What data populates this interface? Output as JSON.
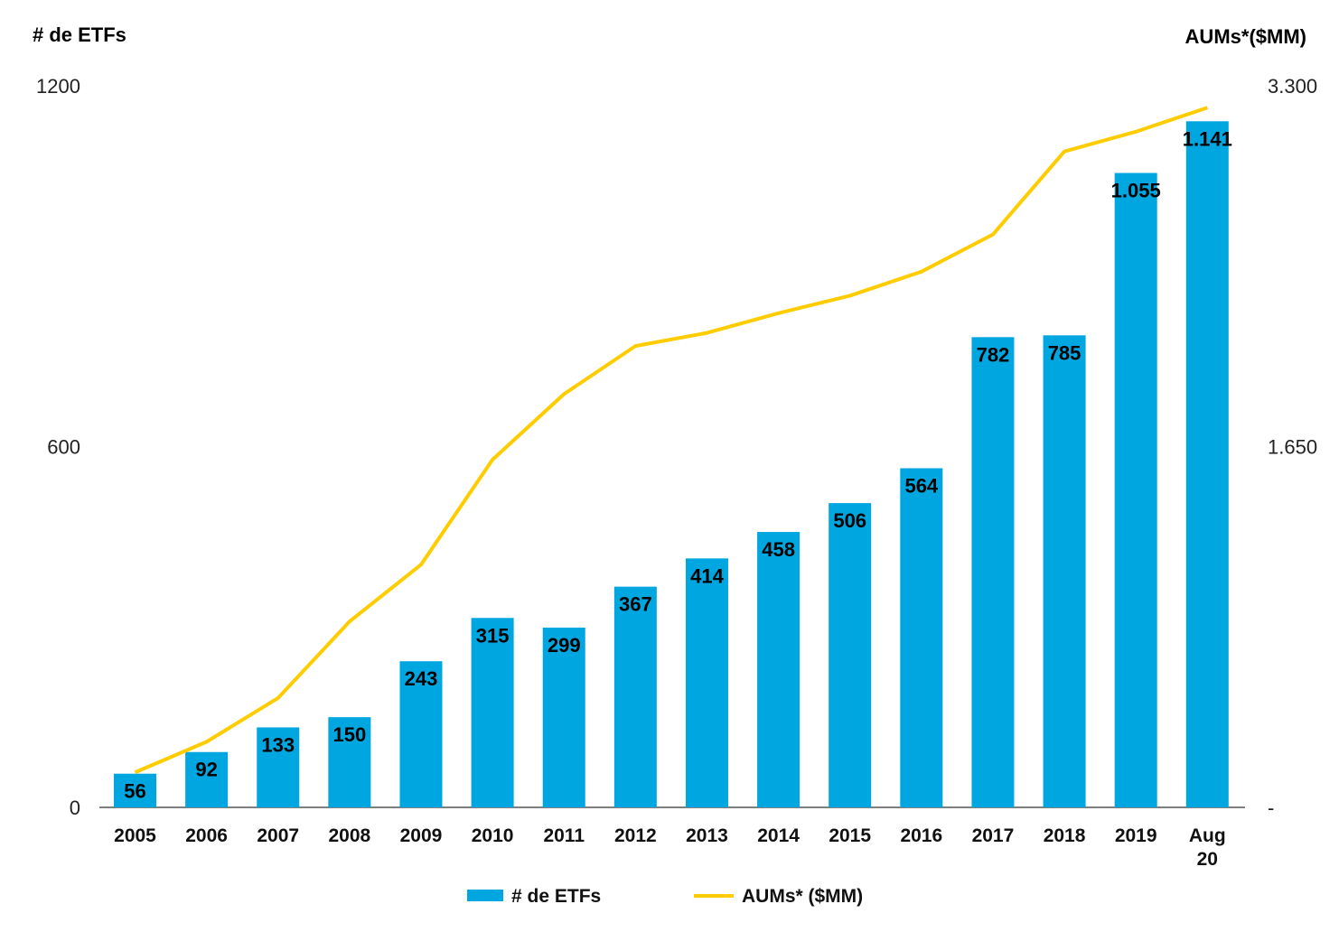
{
  "chart_data": {
    "type": "bar+line",
    "title": "",
    "categories": [
      "2005",
      "2006",
      "2007",
      "2008",
      "2009",
      "2010",
      "2011",
      "2012",
      "2013",
      "2014",
      "2015",
      "2016",
      "2017",
      "2018",
      "2019",
      "Aug 20"
    ],
    "y_left": {
      "label": "#  de ETFs",
      "range": [
        0,
        1200
      ],
      "ticks": [
        "0",
        "600",
        "1200"
      ]
    },
    "y_right": {
      "label": "AUMs*($MM)",
      "range": [
        0,
        3300
      ],
      "ticks": [
        "-",
        "1.650",
        "3.300"
      ]
    },
    "series": [
      {
        "name": "# de ETFs",
        "type": "bar",
        "axis": "left",
        "color": "#00A6DF",
        "values": [
          56,
          92,
          133,
          150,
          243,
          315,
          299,
          367,
          414,
          458,
          506,
          564,
          782,
          785,
          1055,
          1141
        ],
        "labels": [
          "56",
          "92",
          "133",
          "150",
          "243",
          "315",
          "299",
          "367",
          "414",
          "458",
          "506",
          "564",
          "782",
          "785",
          "1.055",
          "1.141"
        ]
      },
      {
        "name": "AUMs* ($MM)",
        "type": "line",
        "axis": "right",
        "color": "#FFCC00",
        "values": [
          160,
          300,
          500,
          850,
          1110,
          1590,
          1890,
          2110,
          2170,
          2260,
          2340,
          2450,
          2620,
          3000,
          3090,
          3200
        ]
      }
    ],
    "grid": false,
    "legend": "bottom"
  }
}
